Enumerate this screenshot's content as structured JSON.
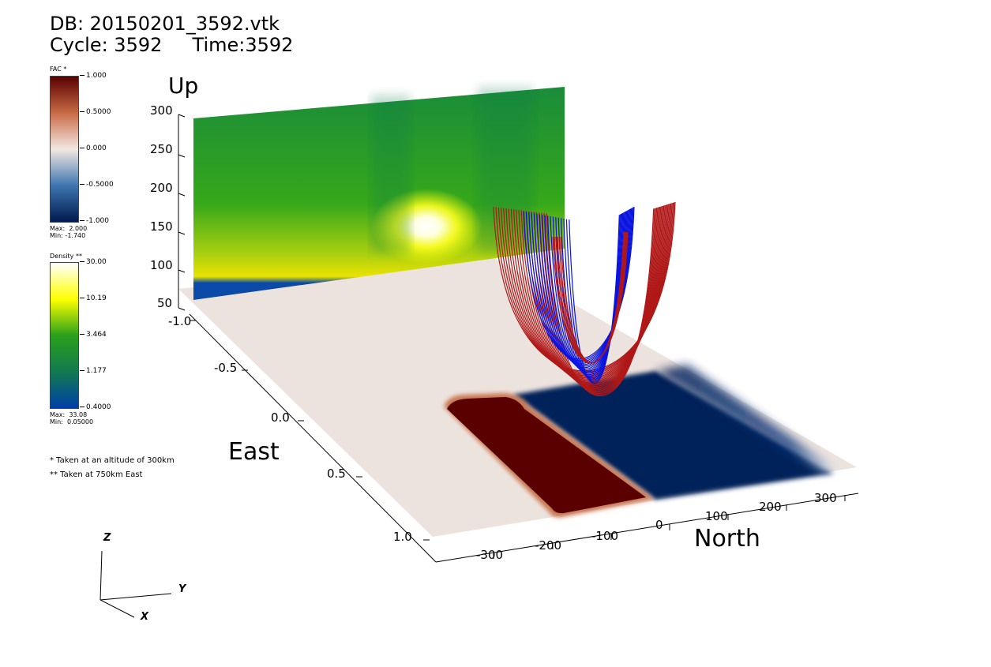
{
  "header": {
    "db_line": "DB: 20150201_3592.vtk",
    "cycle_line": "Cycle: 3592     Time:3592"
  },
  "legends": {
    "fac": {
      "title": "FAC *",
      "ticks": [
        "1.000",
        "0.5000",
        "0.000",
        "-0.5000",
        "-1.000"
      ],
      "max_label": "Max:  2.000",
      "min_label": "Min: -1.740",
      "colors": [
        "#5a0000",
        "#c86a45",
        "#f2e8e2",
        "#3f76b0",
        "#001a4e"
      ]
    },
    "density": {
      "title": "Density **",
      "ticks": [
        "30.00",
        "10.19",
        "3.464",
        "1.177",
        "0.4000"
      ],
      "max_label": "Max:  33.08",
      "min_label": "Min:  0.05000",
      "colors": [
        "#ffffff",
        "#ffff00",
        "#2aa01a",
        "#127a50",
        "#003fa8"
      ]
    }
  },
  "notes": {
    "note1": "* Taken at an altitude of 300km",
    "note2": "** Taken at 750km East"
  },
  "axes": {
    "up": {
      "title": "Up",
      "ticks": [
        "300",
        "250",
        "200",
        "150",
        "100",
        "50"
      ]
    },
    "east": {
      "title": "East",
      "ticks": [
        "-1.0",
        "-0.5",
        "0.0",
        "0.5",
        "1.0"
      ]
    },
    "north": {
      "title": "North",
      "ticks": [
        "-300",
        "-200",
        "-100",
        "0",
        "100",
        "200",
        "300"
      ]
    }
  },
  "triad": {
    "z": "Z",
    "y": "Y",
    "x": "X"
  },
  "colors": {
    "red_lines": "#b01818",
    "blue_lines": "#0a14e0",
    "floor": "#ede3de",
    "red_patch": "#5a0000",
    "blue_patch": "#00205a"
  }
}
